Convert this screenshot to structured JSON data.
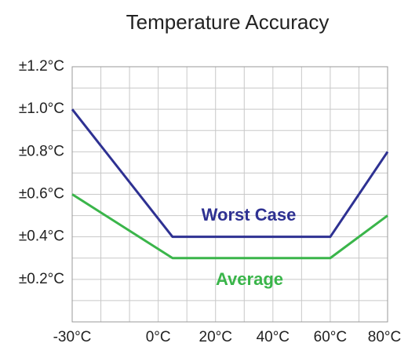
{
  "chart_data": {
    "type": "line",
    "title": "Temperature Accuracy",
    "x": [
      -30,
      5,
      60,
      80
    ],
    "series": [
      {
        "name": "Worst Case",
        "color": "#2e3192",
        "values": [
          1.0,
          0.4,
          0.4,
          0.8
        ]
      },
      {
        "name": "Average",
        "color": "#3ab54a",
        "values": [
          0.6,
          0.3,
          0.3,
          0.5
        ]
      }
    ],
    "xlim": [
      -30,
      80
    ],
    "xticks": [
      {
        "value": -30,
        "label": "-30°C"
      },
      {
        "value": 0,
        "label": "0°C"
      },
      {
        "value": 20,
        "label": "20°C"
      },
      {
        "value": 40,
        "label": "40°C"
      },
      {
        "value": 60,
        "label": "60°C"
      },
      {
        "value": 80,
        "label": "80°C"
      }
    ],
    "xminor": [
      -20,
      -10,
      10,
      30,
      50,
      70
    ],
    "ylim": [
      0,
      1.2
    ],
    "yticks": [
      {
        "value": 0.2,
        "label": "±0.2°C"
      },
      {
        "value": 0.4,
        "label": "±0.4°C"
      },
      {
        "value": 0.6,
        "label": "±0.6°C"
      },
      {
        "value": 0.8,
        "label": "±0.8°C"
      },
      {
        "value": 1.0,
        "label": "±1.0°C"
      },
      {
        "value": 1.2,
        "label": "±1.2°C"
      }
    ],
    "yminor": [
      0.1,
      0.3,
      0.5,
      0.7,
      0.9,
      1.1
    ],
    "grid": true
  }
}
